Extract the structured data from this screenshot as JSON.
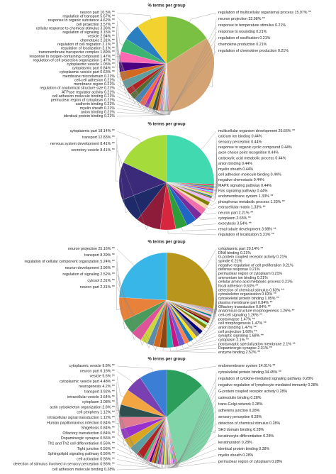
{
  "chart_data": [
    {
      "type": "pie",
      "title": "% terms per group",
      "categories": [
        "regulation of multicellular organismal process",
        "neuron projection",
        "response to temperature stimulus",
        "response to wounding",
        "regulation of ossification",
        "chemokine production",
        "regulation of chemokine production",
        "identical protein binding",
        "anion binding",
        "myelin sheath",
        "cadherin binding",
        "perinuclear region of cytoplasm",
        "cell adhesion molecule binding",
        "ATPase regulator activity",
        "regulation of anatomical structure size",
        "membrane region",
        "cell-cell adhesion",
        "membrane microdomain",
        "cytoplasmic vesicle part",
        "cytoplasmic part",
        "cytoplasmic vesicle",
        "regulation of cell projection organization",
        "response to oxygen-containing compound",
        "transmembrane transporter complex",
        "regulation of localization",
        "regulation of cell migration",
        "chemotaxis",
        "vesicle",
        "regulation of signaling",
        "cellular response to chemical stimulus",
        "cell projection",
        "response to organic substance",
        "regulation of transport",
        "neuron part"
      ],
      "values": [
        15.97,
        32.98,
        0.21,
        0.21,
        0.21,
        0.21,
        0.21,
        0.21,
        0.21,
        0.21,
        0.21,
        0.21,
        0.21,
        0.21,
        0.21,
        0.21,
        0.21,
        0.21,
        0.63,
        0.84,
        1.05,
        1.47,
        1.47,
        1.89,
        2.1,
        2.1,
        2.31,
        2.94,
        3.15,
        3.36,
        3.57,
        4.62,
        5.67,
        10.5
      ],
      "value_labels": [
        "15.97% **",
        "32.98% **",
        "0.21%",
        "0.21%",
        "0.21%",
        "0.21%",
        "0.21%",
        "0.21%",
        "0.21%",
        "0.21%",
        "0.21%",
        "0.21%",
        "0.21%",
        "0.21%",
        "0.21%",
        "0.21%",
        "0.21%",
        "0.21%",
        "0.63% **",
        "0.84% **",
        "1.05% **",
        "1.47% **",
        "1.47% **",
        "1.89% **",
        "2.1% **",
        "2.1% **",
        "2.31% **",
        "2.94% **",
        "3.15% **",
        "3.36% **",
        "3.57% **",
        "4.62% **",
        "5.67% **",
        "10.5% **"
      ],
      "colors": [
        "#7ac143",
        "#d4a373",
        "#e6194b",
        "#3cb44b",
        "#4363d8",
        "#f58231",
        "#911eb4",
        "#46f0f0",
        "#f032e6",
        "#bcf60c",
        "#fabebe",
        "#008080",
        "#e6beff",
        "#9a6324",
        "#e07b91",
        "#6a5acd",
        "#c71585",
        "#20b2aa",
        "#ff7f50",
        "#8b4513",
        "#2f4f4f",
        "#daa520",
        "#9932cc",
        "#ff6347",
        "#4682b4",
        "#556b2f",
        "#b22222",
        "#5f9ea0",
        "#d2691e",
        "#4b0082",
        "#ff69b4",
        "#3cb371",
        "#2a7fc1",
        "#f2d22e"
      ]
    },
    {
      "type": "pie",
      "title": "% terms per group",
      "categories": [
        "multicellular organism development",
        "calcium ion binding",
        "sensory perception",
        "response to organic cyclic compound",
        "axon choice point recognition",
        "carboxylic acid metabolic process",
        "anion binding",
        "myelin sheath",
        "cell adhesion molecule binding",
        "negative chemotaxis",
        "MAPK signaling pathway",
        "Ras signaling pathway",
        "endomembrane system",
        "phosphorus metabolic process",
        "extracellular matrix",
        "neuron part",
        "cytoplasm",
        "exocytosis",
        "renal tubule development",
        "regulation of localization",
        "secretory vesicle",
        "nervous system development",
        "transport",
        "cytoplasmic part"
      ],
      "values": [
        25.66,
        0.44,
        0.44,
        0.44,
        0.44,
        0.44,
        0.44,
        0.44,
        0.44,
        0.44,
        0.44,
        0.44,
        1.33,
        1.33,
        1.33,
        2.21,
        2.65,
        3.54,
        3.98,
        5.31,
        8.41,
        8.41,
        12.83,
        18.14
      ],
      "value_labels": [
        "25.66% **",
        "0.44%",
        "0.44%",
        "0.44%",
        "0.44%",
        "0.44%",
        "0.44%",
        "0.44%",
        "0.44%",
        "0.44%",
        "0.44%",
        "0.44%",
        "1.33% **",
        "1.33% **",
        "1.33% **",
        "2.21% **",
        "2.65% **",
        "3.54% **",
        "3.98% **",
        "5.31% **",
        "8.41% **",
        "8.41% **",
        "12.83% **",
        "18.14% **"
      ],
      "colors": [
        "#40d9b0",
        "#e6194b",
        "#3cb44b",
        "#4363d8",
        "#f58231",
        "#911eb4",
        "#46f0f0",
        "#f032e6",
        "#bcf60c",
        "#fabebe",
        "#008080",
        "#9a6324",
        "#e6beff",
        "#808000",
        "#ffd8b1",
        "#f06fa8",
        "#7b2a9b",
        "#2166c4",
        "#2e9e3a",
        "#d7263d",
        "#8c1c3a",
        "#1f2a6b",
        "#3b2a7a",
        "#a5dc3c"
      ]
    },
    {
      "type": "pie",
      "title": "% terms per group",
      "categories": [
        "cytoplasmic part",
        "DNA binding",
        "G-protein coupled receptor activity",
        "spindle",
        "negative regulation of cell proliferation",
        "defense response",
        "perinuclear region of cytoplasm",
        "ammonium ion binding",
        "cellular amino acid metabolic process",
        "focal adhesion",
        "detection of chemical stimulus",
        "cytoskeleton organization",
        "cytoskeletal protein binding",
        "plasma membrane part",
        "Olfactory transduction",
        "anatomical structure morphogenesis",
        "cell-cell signaling",
        "postsynapse",
        "cell morphogenesis",
        "anion binding",
        "cell projection",
        "synaptic signaling",
        "cytoplasm",
        "postsynaptic specialization membrane",
        "Dopaminergic synapse",
        "enzyme binding",
        "neuron part",
        "cytosol",
        "regulation of signaling",
        "neuron development",
        "regulation of cellular component organization",
        "transport",
        "neuron projection"
      ],
      "values": [
        29.14,
        0.21,
        0.21,
        0.21,
        0.21,
        0.21,
        0.21,
        0.21,
        0.21,
        0.63,
        0.63,
        0.63,
        1.05,
        0.84,
        0.84,
        1.26,
        1.26,
        1.47,
        1.47,
        1.47,
        1.68,
        1.68,
        2.1,
        2.1,
        2.31,
        2.52,
        2.31,
        2.31,
        2.52,
        3.96,
        5.24,
        8.39,
        25.16
      ],
      "value_labels": [
        "29.14% **",
        "0.21%",
        "0.21%",
        "0.21%",
        "0.21%",
        "0.21%",
        "0.21%",
        "0.21%",
        "0.21%",
        "0.63% **",
        "0.63% **",
        "0.63% **",
        "1.05% **",
        "0.84% **",
        "0.84% **",
        "1.26% **",
        "1.26% **",
        "1.47% **",
        "1.47% **",
        "1.47% **",
        "1.68% **",
        "1.68% **",
        "2.1% **",
        "2.1% **",
        "2.31% **",
        "2.52% **",
        "2.31% **",
        "2.31% **",
        "2.52% **",
        "3.96% **",
        "5.24% **",
        "8.39% **",
        "25.16% **"
      ],
      "colors": [
        "#b8961e",
        "#e6194b",
        "#3cb44b",
        "#4363d8",
        "#f58231",
        "#911eb4",
        "#46f0f0",
        "#f032e6",
        "#bcf60c",
        "#fabebe",
        "#008080",
        "#e6beff",
        "#9a6324",
        "#800000",
        "#aaffc3",
        "#808000",
        "#ffd8b1",
        "#000075",
        "#808080",
        "#ffe119",
        "#1f77b4",
        "#ff7f50",
        "#6a5acd",
        "#c71585",
        "#20b2aa",
        "#8b4513",
        "#d2691e",
        "#5d8aa8",
        "#c8d63a",
        "#e0529a",
        "#4a9a5c",
        "#e8813a",
        "#38b6e8"
      ]
    },
    {
      "type": "pie",
      "title": "% terms per group",
      "categories": [
        "endomembrane system",
        "cytoskeletal protein binding",
        "regulation of cytokine-mediated signaling pathway",
        "negative regulation of lymphocyte mediated immunity",
        "G-protein coupled receptor activity",
        "calmodulin binding",
        "trans-Golgi network",
        "adherens junction",
        "sensory perception",
        "detection of chemical stimulus",
        "SH3 domain binding",
        "keratinocyte differentiation",
        "keratinization",
        "identical protein binding",
        "myelin sheath",
        "perinuclear region of cytoplasm",
        "cell adhesion molecule binding",
        "detection of stimulus involved in sensory perception",
        "cell activation",
        "Sphingolipid signaling pathway",
        "Tight junction",
        "Th1 and Th2 cell differentiation",
        "Dopaminergic synapse",
        "Olfactory transduction",
        "Shigellosis",
        "Human papillomavirus infection",
        "intracellular signal transduction",
        "cell periphery",
        "actin cytoskeleton organization",
        "cytoplasm",
        "intracellular vesicle",
        "transport",
        "neurogenesis",
        "cytoplasmic vesicle part",
        "vesicle",
        "neuron part",
        "cytoplasmic vesicle"
      ],
      "values": [
        14.01,
        34.45,
        0.28,
        0.28,
        0.28,
        0.28,
        0.28,
        0.28,
        0.28,
        0.28,
        0.28,
        0.28,
        0.28,
        0.28,
        0.28,
        0.28,
        0.28,
        0.56,
        0.56,
        0.56,
        0.56,
        0.56,
        0.56,
        0.84,
        0.84,
        0.84,
        1.12,
        1.12,
        2.8,
        3.08,
        3.64,
        3.92,
        4.2,
        4.48,
        5.6,
        6.16,
        9.8
      ],
      "value_labels": [
        "14.01% **",
        "34.45% **",
        "0.28%",
        "0.28%",
        "0.28%",
        "0.28%",
        "0.28%",
        "0.28%",
        "0.28%",
        "0.28%",
        "0.28%",
        "0.28%",
        "0.28%",
        "0.28%",
        "0.28%",
        "0.28%",
        "0.28%",
        "0.56% **",
        "0.56% **",
        "0.56% **",
        "0.56% **",
        "0.56% **",
        "0.56% **",
        "0.84% **",
        "0.84% **",
        "0.84% **",
        "1.12% **",
        "1.12% **",
        "2.8% **",
        "3.08% **",
        "3.64% **",
        "3.92% **",
        "4.2% **",
        "4.48% **",
        "5.6% **",
        "6.16% **",
        "9.8% **"
      ],
      "colors": [
        "#2a9e5a",
        "#7fd4a8",
        "#e6194b",
        "#3cb44b",
        "#4363d8",
        "#f58231",
        "#911eb4",
        "#46f0f0",
        "#f032e6",
        "#bcf60c",
        "#fabebe",
        "#008080",
        "#e6beff",
        "#9a6324",
        "#800000",
        "#aaffc3",
        "#808080",
        "#ffe119",
        "#1f77b4",
        "#ff7f50",
        "#6a5acd",
        "#c71585",
        "#20b2aa",
        "#8b4513",
        "#d2691e",
        "#4b0082",
        "#ff69b4",
        "#3cb371",
        "#b22222",
        "#5f9ea0",
        "#daa520",
        "#9932cc",
        "#e07b91",
        "#2f4f4f",
        "#f2a541",
        "#7a3fb0",
        "#3a7fd5"
      ]
    }
  ]
}
